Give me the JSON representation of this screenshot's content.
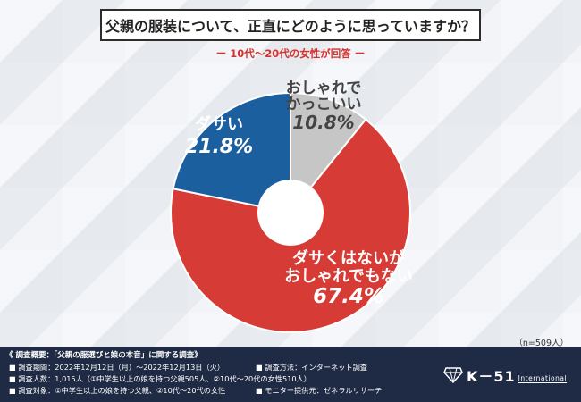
{
  "title": "父親の服装について、正直にどのように思っていますか？",
  "subtitle": "ー 10代～20代の女性が回答 ー",
  "sample_size": "（n=509人）",
  "colors": {
    "red": "#d63b35",
    "blue": "#1b5f9e",
    "gray": "#c6c6c6",
    "footer_bg": "#1f2a44"
  },
  "chart_data": {
    "type": "pie",
    "title": "父親の服装について、正直にどのように思っていますか？",
    "slices": [
      {
        "label_lines": [
          "おしゃれで",
          "かっこいい"
        ],
        "value_text": "10.8%",
        "value": 10.8,
        "color": "#c6c6c6"
      },
      {
        "label_lines": [
          "ダサくはないが",
          "おしゃれでもない"
        ],
        "value_text": "67.4%",
        "value": 67.4,
        "color": "#d63b35"
      },
      {
        "label_lines": [
          "ダサい"
        ],
        "value_text": "21.8%",
        "value": 21.8,
        "color": "#1b5f9e"
      }
    ]
  },
  "footer": {
    "heading": "《 調査概要：「父親の服選びと娘の本音」に関する調査》",
    "period": "■ 調査期間：2022年12月12日（月）～2022年12月13日（火）",
    "count": "■ 調査人数：1,015人（①中学生以上の娘を持つ父親505人、②10代～20代の女性510人）",
    "target": "■ 調査対象：①中学生以上の娘を持つ父親、②10代～20代の女性",
    "method": "■ 調査方法：インターネット調査",
    "provider": "■ モニター提供元：ゼネラルリサーチ"
  },
  "logo": {
    "brand": "K－51",
    "sub": "International",
    "icon": "diamond-icon"
  }
}
